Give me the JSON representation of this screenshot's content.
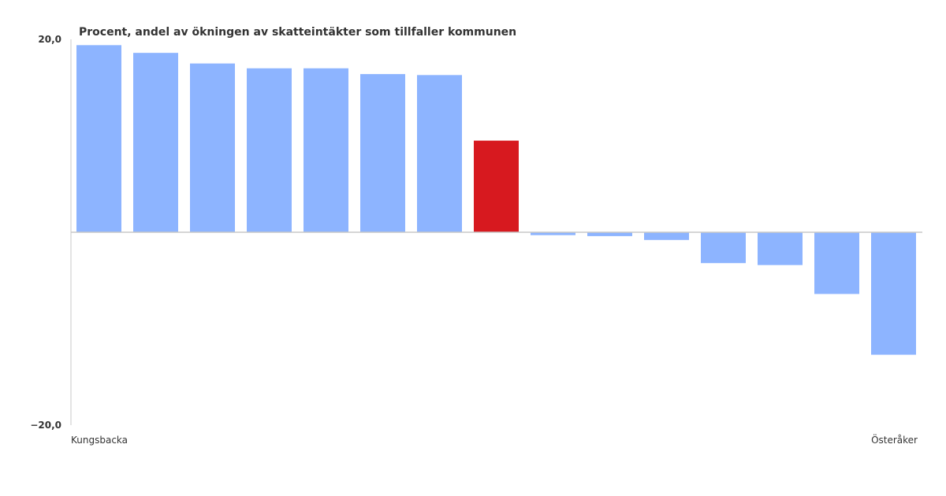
{
  "chart_data": {
    "type": "bar",
    "title": "Procent, andel av ökningen av skatteintäkter som tillfaller kommunen",
    "xlabel": "",
    "ylabel": "",
    "ylim": [
      -20,
      20
    ],
    "yticks": [
      "20,0",
      "−20,0"
    ],
    "grid": false,
    "x_tick_labels": [
      "Kungsbacka",
      "Österåker"
    ],
    "categories": [
      "Kungsbacka",
      "",
      "",
      "",
      "",
      "",
      "",
      "",
      "",
      "",
      "",
      "",
      "",
      "",
      "Österåker"
    ],
    "values": [
      19.4,
      18.6,
      17.5,
      17.0,
      17.0,
      16.4,
      16.3,
      9.5,
      -0.3,
      -0.4,
      -0.8,
      -3.2,
      -3.4,
      -6.4,
      -12.7
    ],
    "highlight_index": 7,
    "colors": {
      "bar": "#8db4ff",
      "highlight": "#d7191f",
      "axis": "#c8c8c8",
      "text": "#333333"
    }
  }
}
